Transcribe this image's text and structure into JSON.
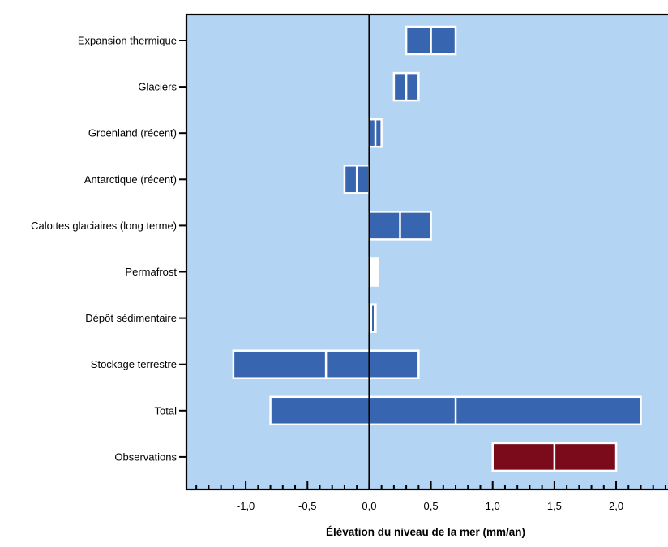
{
  "chart_data": {
    "type": "bar",
    "orientation": "horizontal-range",
    "xlabel": "Élévation du niveau de la mer (mm/an)",
    "xlim": [
      -1.48,
      2.42
    ],
    "x_ticks": [
      -1.0,
      -0.5,
      0.0,
      0.5,
      1.0,
      1.5,
      2.0
    ],
    "x_tick_labels": [
      "-1,0",
      "-0,5",
      "0,0",
      "0,5",
      "1,0",
      "1,5",
      "2,0"
    ],
    "grid": false,
    "background_color": "#b3d4f3",
    "categories": [
      "Expansion thermique",
      "Glaciers",
      "Groenland (récent)",
      "Antarctique (récent)",
      "Calottes glaciaires (long terme)",
      "Permafrost",
      "Dépôt sédimentaire",
      "Stockage terrestre",
      "Total",
      "Observations"
    ],
    "series": [
      {
        "low": [
          0.3,
          0.2,
          0.0,
          -0.2,
          0.0,
          0.0,
          0.0,
          -1.1,
          -0.8,
          1.0
        ],
        "mid": [
          0.5,
          0.3,
          0.05,
          -0.1,
          0.25,
          0.0,
          0.03,
          -0.35,
          0.7,
          1.5
        ],
        "high": [
          0.7,
          0.4,
          0.1,
          0.0,
          0.5,
          0.07,
          0.05,
          0.4,
          2.2,
          2.0
        ],
        "colors": [
          "#3865b0",
          "#3865b0",
          "#3865b0",
          "#3865b0",
          "#3865b0",
          "#ffffff",
          "#ffffff",
          "#3865b0",
          "#3865b0",
          "#7b0b1a"
        ]
      }
    ]
  }
}
